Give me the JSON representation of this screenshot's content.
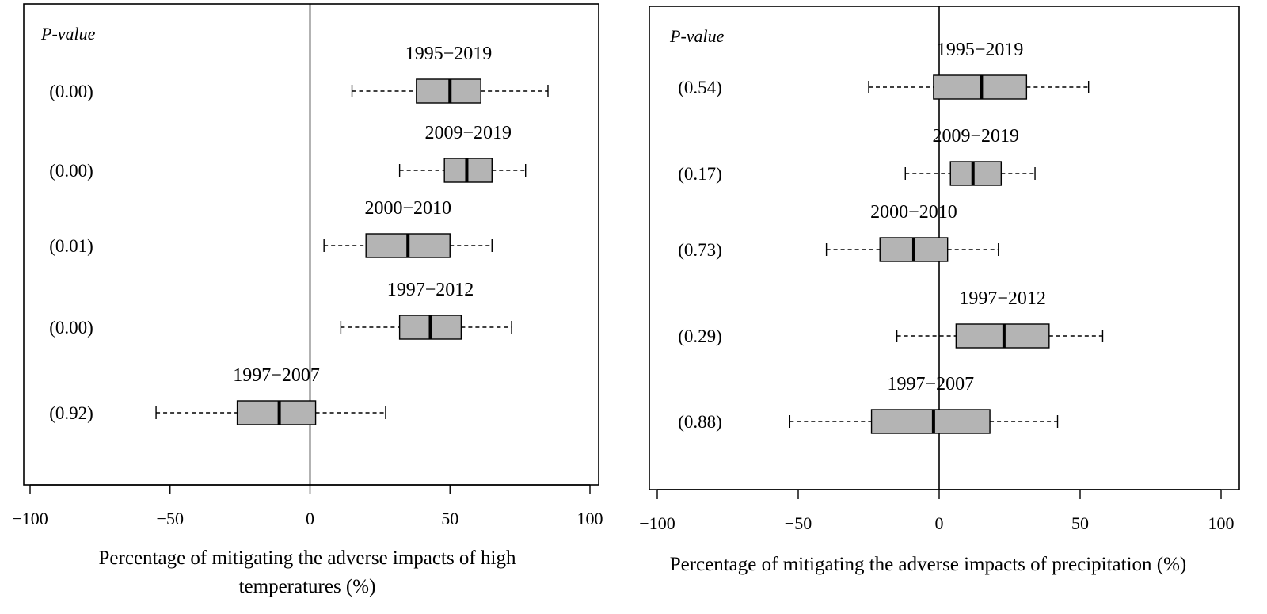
{
  "chart_data": [
    {
      "type": "boxplot",
      "orientation": "horizontal",
      "pvalue_header": "P-value",
      "xlabel_lines": [
        "Percentage of mitigating the adverse impacts of high",
        "temperatures (%)"
      ],
      "xlim": [
        -100,
        100
      ],
      "xticks": [
        -100,
        -50,
        0,
        50,
        100
      ],
      "xtick_labels": [
        "−100",
        "−50",
        "0",
        "50",
        "100"
      ],
      "reference_line": 0,
      "series": [
        {
          "name": "1995−2019",
          "pvalue": "(0.00)",
          "whisker_low": 15,
          "q1": 38,
          "median": 50,
          "q3": 61,
          "whisker_high": 85
        },
        {
          "name": "2009−2019",
          "pvalue": "(0.00)",
          "whisker_low": 32,
          "q1": 48,
          "median": 56,
          "q3": 65,
          "whisker_high": 77
        },
        {
          "name": "2000−2010",
          "pvalue": "(0.01)",
          "whisker_low": 5,
          "q1": 20,
          "median": 35,
          "q3": 50,
          "whisker_high": 65
        },
        {
          "name": "1997−2012",
          "pvalue": "(0.00)",
          "whisker_low": 11,
          "q1": 32,
          "median": 43,
          "q3": 54,
          "whisker_high": 72
        },
        {
          "name": "1997−2007",
          "pvalue": "(0.92)",
          "whisker_low": -55,
          "q1": -26,
          "median": -11,
          "q3": 2,
          "whisker_high": 27
        }
      ]
    },
    {
      "type": "boxplot",
      "orientation": "horizontal",
      "pvalue_header": "P-value",
      "xlabel_lines": [
        "Percentage of mitigating the adverse impacts of precipitation (%)"
      ],
      "xlim": [
        -100,
        100
      ],
      "xticks": [
        -100,
        -50,
        0,
        50,
        100
      ],
      "xtick_labels": [
        "−100",
        "−50",
        "0",
        "50",
        "100"
      ],
      "reference_line": 0,
      "series": [
        {
          "name": "1995−2019",
          "pvalue": "(0.54)",
          "whisker_low": -25,
          "q1": -2,
          "median": 15,
          "q3": 31,
          "whisker_high": 53
        },
        {
          "name": "2009−2019",
          "pvalue": "(0.17)",
          "whisker_low": -12,
          "q1": 4,
          "median": 12,
          "q3": 22,
          "whisker_high": 34
        },
        {
          "name": "2000−2010",
          "pvalue": "(0.73)",
          "whisker_low": -40,
          "q1": -21,
          "median": -9,
          "q3": 3,
          "whisker_high": 21
        },
        {
          "name": "1997−2012",
          "pvalue": "(0.29)",
          "whisker_low": -15,
          "q1": 6,
          "median": 23,
          "q3": 39,
          "whisker_high": 58
        },
        {
          "name": "1997−2007",
          "pvalue": "(0.88)",
          "whisker_low": -53,
          "q1": -24,
          "median": -2,
          "q3": 18,
          "whisker_high": 42
        }
      ]
    }
  ],
  "colors": {
    "box_fill": "#b4b4b4",
    "line": "#000000",
    "background": "#ffffff"
  }
}
